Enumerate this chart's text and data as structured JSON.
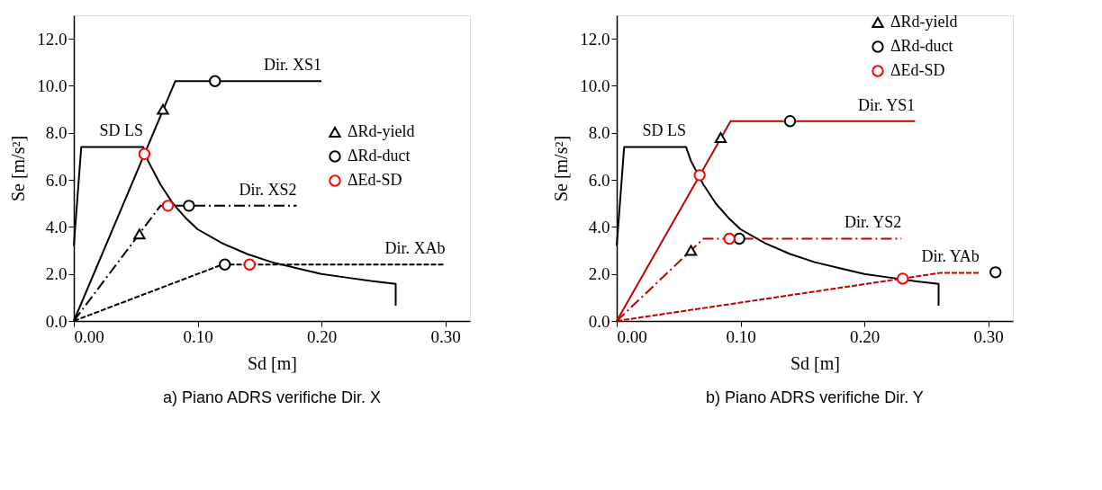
{
  "chart_data": [
    {
      "type": "line",
      "title": "a)    Piano ADRS verifiche Dir. X",
      "xlabel": "Sd [m]",
      "ylabel": "Se [m/s²]",
      "xlim": [
        0,
        0.32
      ],
      "ylim": [
        0,
        13
      ],
      "xticks": [
        {
          "value": 0,
          "label": "0.00"
        },
        {
          "value": 0.1,
          "label": "0.10"
        },
        {
          "value": 0.2,
          "label": "0.20"
        },
        {
          "value": 0.3,
          "label": "0.30"
        }
      ],
      "yticks": [
        {
          "value": 0,
          "label": "0.0"
        },
        {
          "value": 2,
          "label": "2.0"
        },
        {
          "value": 4,
          "label": "4.0"
        },
        {
          "value": 6,
          "label": "6.0"
        },
        {
          "value": 8,
          "label": "8.0"
        },
        {
          "value": 10,
          "label": "10.0"
        },
        {
          "value": 12,
          "label": "12.0"
        }
      ],
      "grid": false,
      "legend": "right",
      "series": [
        {
          "name": "SD LS",
          "line_style": "solid",
          "color": "#000000",
          "x": [
            0,
            0.006,
            0.056,
            0.06,
            0.07,
            0.08,
            0.09,
            0.1,
            0.12,
            0.14,
            0.16,
            0.18,
            0.2,
            0.22,
            0.24,
            0.26,
            0.26
          ],
          "values": [
            3.2,
            7.4,
            7.4,
            6.8,
            5.8,
            5.0,
            4.4,
            3.9,
            3.3,
            2.85,
            2.5,
            2.25,
            2.0,
            1.85,
            1.7,
            1.58,
            0.65
          ]
        },
        {
          "name": "Dir. XS1",
          "line_style": "solid",
          "color": "#000000",
          "x": [
            0,
            0.082,
            0.2
          ],
          "values": [
            0,
            10.2,
            10.2
          ]
        },
        {
          "name": "Dir. XS2",
          "line_style": "dashdot",
          "color": "#000000",
          "x": [
            0,
            0.07,
            0.18
          ],
          "values": [
            0,
            4.9,
            4.9
          ]
        },
        {
          "name": "Dir. XAb",
          "line_style": "dashed",
          "color": "#000000",
          "x": [
            0,
            0.12,
            0.3
          ],
          "values": [
            0,
            2.4,
            2.4
          ]
        },
        {
          "name": "ΔRd-yield",
          "type": "scatter",
          "marker": "triangle",
          "color": "#000000",
          "x": [
            0.072,
            0.053
          ],
          "values": [
            9.0,
            3.7
          ]
        },
        {
          "name": "ΔRd-duct",
          "type": "scatter",
          "marker": "circle",
          "color": "#000000",
          "x": [
            0.114,
            0.093,
            0.122
          ],
          "values": [
            10.2,
            4.9,
            2.4
          ]
        },
        {
          "name": "ΔEd-SD",
          "type": "scatter",
          "marker": "circle",
          "color": "#ff0000",
          "x": [
            0.057,
            0.076,
            0.142
          ],
          "values": [
            7.1,
            4.9,
            2.4
          ]
        }
      ]
    },
    {
      "type": "line",
      "title": "b)    Piano ADRS verifiche Dir. Y",
      "xlabel": "Sd [m]",
      "ylabel": "Se [m/s²]",
      "xlim": [
        0,
        0.32
      ],
      "ylim": [
        0,
        13
      ],
      "xticks": [
        {
          "value": 0,
          "label": "0.00"
        },
        {
          "value": 0.1,
          "label": "0.10"
        },
        {
          "value": 0.2,
          "label": "0.20"
        },
        {
          "value": 0.3,
          "label": "0.30"
        }
      ],
      "yticks": [
        {
          "value": 0,
          "label": "0.0"
        },
        {
          "value": 2,
          "label": "2.0"
        },
        {
          "value": 4,
          "label": "4.0"
        },
        {
          "value": 6,
          "label": "6.0"
        },
        {
          "value": 8,
          "label": "8.0"
        },
        {
          "value": 10,
          "label": "10.0"
        },
        {
          "value": 12,
          "label": "12.0"
        }
      ],
      "grid": false,
      "legend": "top right",
      "series": [
        {
          "name": "SD LS",
          "line_style": "solid",
          "color": "#000000",
          "x": [
            0,
            0.006,
            0.056,
            0.06,
            0.07,
            0.08,
            0.09,
            0.1,
            0.12,
            0.14,
            0.16,
            0.18,
            0.2,
            0.22,
            0.24,
            0.26,
            0.26
          ],
          "values": [
            3.2,
            7.4,
            7.4,
            6.8,
            5.8,
            5.0,
            4.4,
            3.9,
            3.3,
            2.85,
            2.5,
            2.25,
            2.0,
            1.85,
            1.7,
            1.58,
            0.65
          ]
        },
        {
          "name": "Dir. YS1",
          "line_style": "solid",
          "color": "#c00000",
          "x": [
            0,
            0.092,
            0.241
          ],
          "values": [
            0,
            8.5,
            8.5
          ]
        },
        {
          "name": "Dir. YS2",
          "line_style": "dashdot",
          "color": "#c00000",
          "x": [
            0,
            0.07,
            0.23
          ],
          "values": [
            0,
            3.5,
            3.5
          ]
        },
        {
          "name": "Dir. YAb",
          "line_style": "dashed",
          "color": "#c00000",
          "x": [
            0,
            0.262,
            0.293
          ],
          "values": [
            0,
            2.05,
            2.05
          ]
        },
        {
          "name": "ΔRd-yield",
          "type": "scatter",
          "marker": "triangle",
          "color": "#000000",
          "x": [
            0.084,
            0.06
          ],
          "values": [
            7.8,
            3.0
          ]
        },
        {
          "name": "ΔRd-duct",
          "type": "scatter",
          "marker": "circle",
          "color": "#000000",
          "x": [
            0.14,
            0.099,
            0.306
          ],
          "values": [
            8.5,
            3.5,
            2.07
          ]
        },
        {
          "name": "ΔEd-SD",
          "type": "scatter",
          "marker": "circle",
          "color": "#ff0000",
          "x": [
            0.067,
            0.091,
            0.231
          ],
          "values": [
            6.2,
            3.5,
            1.8
          ]
        }
      ]
    }
  ]
}
